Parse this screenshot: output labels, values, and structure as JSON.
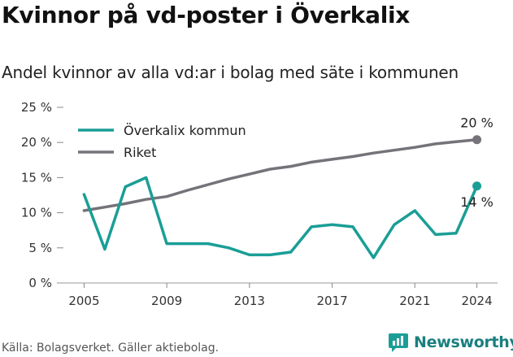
{
  "title": "Kvinnor på vd-poster i Överkalix",
  "subtitle": "Andel kvinnor av alla vd:ar i bolag med säte i kommunen",
  "footer": "Källa: Bolagsverket. Gäller aktiebolag.",
  "logo_text": "Newsworthy",
  "chart_data": {
    "type": "line",
    "x": [
      2005,
      2006,
      2007,
      2008,
      2009,
      2010,
      2011,
      2012,
      2013,
      2014,
      2015,
      2016,
      2017,
      2018,
      2019,
      2020,
      2021,
      2022,
      2023,
      2024
    ],
    "series": [
      {
        "name": "Överkalix kommun",
        "color": "#1a9e96",
        "values": [
          12.6,
          4.8,
          13.7,
          15.0,
          5.6,
          5.6,
          5.6,
          5.0,
          4.0,
          4.0,
          4.4,
          8.0,
          8.3,
          8.0,
          3.6,
          8.3,
          10.3,
          6.9,
          7.1,
          13.8
        ]
      },
      {
        "name": "Riket",
        "color": "#757379",
        "values": [
          10.3,
          10.8,
          11.3,
          11.9,
          12.3,
          13.2,
          14.0,
          14.8,
          15.5,
          16.2,
          16.6,
          17.2,
          17.6,
          18.0,
          18.5,
          18.9,
          19.3,
          19.8,
          20.1,
          20.4
        ]
      }
    ],
    "ylim": [
      0,
      25
    ],
    "yticks": [
      0,
      5,
      10,
      15,
      20,
      25
    ],
    "ytick_labels": [
      "0 %",
      "5 %",
      "10 %",
      "15 %",
      "20 %",
      "25 %"
    ],
    "xticks": [
      2005,
      2009,
      2013,
      2017,
      2021,
      2024
    ],
    "xtick_labels": [
      "2005",
      "2009",
      "2013",
      "2017",
      "2021",
      "2024"
    ],
    "end_labels": [
      "14 %",
      "20 %"
    ],
    "legend_position": "top-left",
    "grid": false
  }
}
